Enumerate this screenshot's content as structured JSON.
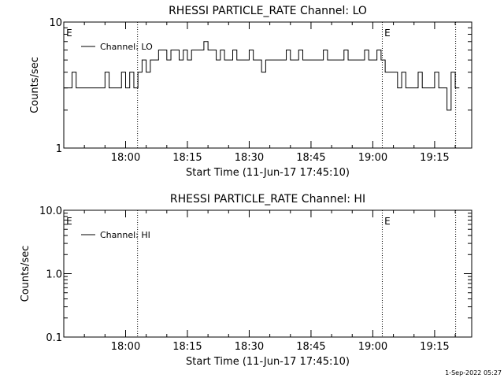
{
  "chart_data": [
    {
      "type": "line",
      "title": "RHESSI PARTICLE_RATE Channel: LO",
      "xlabel": "Start Time (11-Jun-17 17:45:10)",
      "ylabel": "Counts/sec",
      "yscale": "log",
      "ylim": [
        1,
        10
      ],
      "ytick_values": [
        1,
        10
      ],
      "ytick_labels": [
        "1",
        "10"
      ],
      "xlim_minutes": [
        0,
        99
      ],
      "xtick_minutes": [
        15,
        30,
        45,
        60,
        75,
        90
      ],
      "xtick_labels": [
        "18:00",
        "18:15",
        "18:30",
        "18:45",
        "19:00",
        "19:15"
      ],
      "event_lines_minutes": [
        17.9,
        77.3,
        95.1
      ],
      "event_markers": [
        {
          "minute": 0.6,
          "label": "E"
        },
        {
          "minute": 77.8,
          "label": "E"
        }
      ],
      "legend": {
        "entry": "Channel: LO",
        "placement": "top-left"
      },
      "grid": false,
      "series": [
        {
          "name": "Channel: LO",
          "x": [
            0,
            1,
            2,
            3,
            4,
            5,
            6,
            7,
            8,
            9,
            10,
            11,
            12,
            13,
            14,
            15,
            16,
            17,
            18,
            19,
            20,
            21,
            22,
            23,
            24,
            25,
            26,
            27,
            28,
            29,
            30,
            31,
            32,
            33,
            34,
            35,
            36,
            37,
            38,
            39,
            40,
            41,
            42,
            43,
            44,
            45,
            46,
            47,
            48,
            49,
            50,
            51,
            52,
            53,
            54,
            55,
            56,
            57,
            58,
            59,
            60,
            61,
            62,
            63,
            64,
            65,
            66,
            67,
            68,
            69,
            70,
            71,
            72,
            73,
            74,
            75,
            76,
            77,
            78,
            79,
            80,
            81,
            82,
            83,
            84,
            85,
            86,
            87,
            88,
            89,
            90,
            91,
            92,
            93,
            94,
            95
          ],
          "y": [
            3,
            3,
            4,
            3,
            3,
            3,
            3,
            3,
            3,
            3,
            4,
            3,
            3,
            3,
            4,
            3,
            4,
            3,
            4,
            5,
            4,
            5,
            5,
            6,
            6,
            5,
            6,
            6,
            5,
            6,
            5,
            6,
            6,
            6,
            7,
            6,
            6,
            5,
            6,
            5,
            5,
            6,
            5,
            5,
            5,
            6,
            5,
            5,
            4,
            5,
            5,
            5,
            5,
            5,
            6,
            5,
            5,
            6,
            5,
            5,
            5,
            5,
            5,
            6,
            5,
            5,
            5,
            5,
            6,
            5,
            5,
            5,
            5,
            6,
            5,
            5,
            6,
            5,
            4,
            4,
            4,
            3,
            4,
            3,
            3,
            3,
            4,
            3,
            3,
            3,
            4,
            3,
            3,
            2,
            4,
            3
          ]
        }
      ]
    },
    {
      "type": "line",
      "title": "RHESSI PARTICLE_RATE Channel: HI",
      "xlabel": "Start Time (11-Jun-17 17:45:10)",
      "ylabel": "Counts/sec",
      "yscale": "log",
      "ylim": [
        0.1,
        10
      ],
      "ytick_values": [
        0.1,
        1,
        10
      ],
      "ytick_labels": [
        "0.1",
        "1.0",
        "10.0"
      ],
      "xlim_minutes": [
        0,
        99
      ],
      "xtick_minutes": [
        15,
        30,
        45,
        60,
        75,
        90
      ],
      "xtick_labels": [
        "18:00",
        "18:15",
        "18:30",
        "18:45",
        "19:00",
        "19:15"
      ],
      "event_lines_minutes": [
        17.9,
        77.3,
        95.1
      ],
      "event_markers": [
        {
          "minute": 0.6,
          "label": "E"
        },
        {
          "minute": 77.8,
          "label": "E"
        }
      ],
      "legend": {
        "entry": "Channel: HI",
        "placement": "top-left"
      },
      "grid": false,
      "series": [
        {
          "name": "Channel: HI",
          "x": [],
          "y": []
        }
      ]
    }
  ],
  "footer": {
    "timestamp": "1-Sep-2022 05:27"
  }
}
